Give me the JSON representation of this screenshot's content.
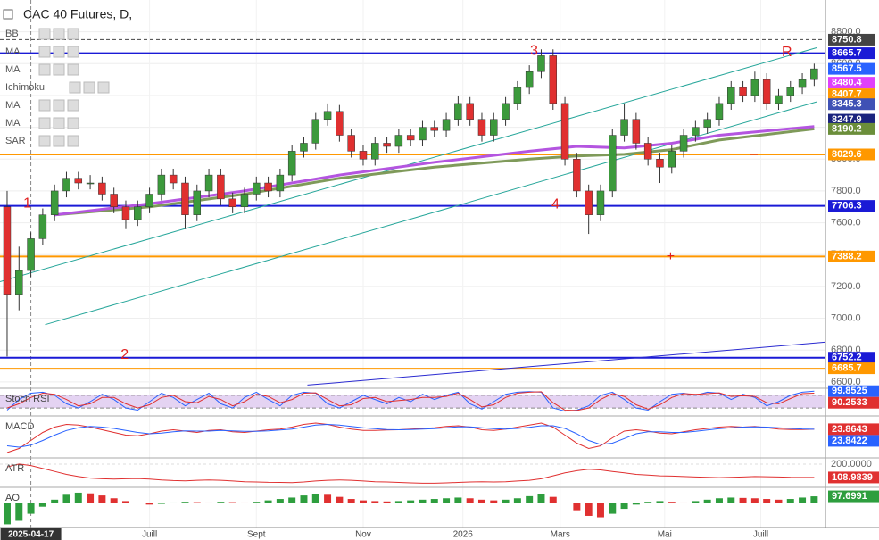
{
  "chart_data": [
    {
      "type": "candlestick",
      "title": "CAC 40 Futures, D,",
      "indicators": [
        "BB",
        "MA",
        "MA",
        "Ichimoku",
        "MA",
        "MA",
        "SAR"
      ],
      "up_color": "#3c9a3c",
      "down_color": "#e03030",
      "open": [
        7700,
        7150,
        7300,
        7500,
        7650,
        7800,
        7880,
        7850,
        7850,
        7780,
        7700,
        7620,
        7700,
        7780,
        7900,
        7850,
        7650,
        7800,
        7900,
        7750,
        7700,
        7780,
        7850,
        7800,
        7900,
        8050,
        8100,
        8250,
        8300,
        8150,
        8050,
        8000,
        8100,
        8080,
        8150,
        8120,
        8200,
        8180,
        8250,
        8350,
        8250,
        8150,
        8250,
        8350,
        8450,
        8550,
        8650,
        8350,
        8000,
        7800,
        7650,
        7800,
        8150,
        8250,
        8100,
        8000,
        7950,
        8050,
        8150,
        8200,
        8250,
        8350,
        8450,
        8400,
        8500,
        8350,
        8400,
        8450,
        8500
      ],
      "high": [
        7800,
        7450,
        7540,
        7690,
        7840,
        7920,
        7920,
        7900,
        7890,
        7820,
        7740,
        7740,
        7820,
        7940,
        7940,
        7890,
        7840,
        7940,
        7940,
        7790,
        7820,
        7890,
        7890,
        7940,
        8090,
        8140,
        8290,
        8350,
        8340,
        8190,
        8090,
        8140,
        8140,
        8190,
        8190,
        8240,
        8240,
        8290,
        8400,
        8390,
        8290,
        8290,
        8390,
        8490,
        8590,
        8690,
        8690,
        8390,
        8040,
        7840,
        7840,
        8190,
        8350,
        8290,
        8140,
        8040,
        8090,
        8190,
        8240,
        8290,
        8390,
        8490,
        8490,
        8550,
        8540,
        8440,
        8490,
        8540,
        8600
      ],
      "low": [
        6760,
        7050,
        7260,
        7460,
        7610,
        7760,
        7810,
        7810,
        7740,
        7660,
        7560,
        7580,
        7660,
        7740,
        7810,
        7560,
        7610,
        7760,
        7710,
        7660,
        7660,
        7740,
        7760,
        7760,
        7860,
        8010,
        8060,
        8210,
        8110,
        8010,
        7960,
        7960,
        8040,
        8040,
        8080,
        8080,
        8140,
        8140,
        8210,
        8210,
        8110,
        8110,
        8210,
        8310,
        8410,
        8510,
        8310,
        7960,
        7760,
        7530,
        7610,
        7760,
        8110,
        8060,
        7960,
        7850,
        7910,
        8010,
        8110,
        8160,
        8210,
        8310,
        8360,
        8360,
        8310,
        8310,
        8360,
        8410,
        8460
      ],
      "close": [
        7150,
        7300,
        7500,
        7650,
        7800,
        7880,
        7850,
        7850,
        7780,
        7700,
        7620,
        7700,
        7780,
        7900,
        7850,
        7650,
        7800,
        7900,
        7750,
        7700,
        7780,
        7850,
        7800,
        7900,
        8050,
        8100,
        8250,
        8300,
        8150,
        8050,
        8000,
        8100,
        8080,
        8150,
        8120,
        8200,
        8180,
        8250,
        8350,
        8250,
        8150,
        8250,
        8350,
        8450,
        8550,
        8650,
        8350,
        8000,
        7800,
        7650,
        7800,
        8150,
        8250,
        8100,
        8000,
        7950,
        8050,
        8150,
        8200,
        8250,
        8350,
        8450,
        8400,
        8500,
        8350,
        8400,
        8450,
        8500,
        8567.5
      ],
      "xlim": [
        -0.6,
        68.95
      ],
      "xticks": [
        {
          "value": 12,
          "label": "Juill"
        },
        {
          "value": 21,
          "label": "Sept"
        },
        {
          "value": 30,
          "label": "Nov"
        },
        {
          "value": 38.4,
          "label": "2026"
        },
        {
          "value": 46.6,
          "label": "Mars"
        },
        {
          "value": 55.4,
          "label": "Mai"
        },
        {
          "value": 63.5,
          "label": "Juill"
        }
      ],
      "x_marker": {
        "value": 2,
        "label": "2025-04-17"
      },
      "ylim": [
        6560,
        9000
      ],
      "yticks": [
        {
          "value": 6600,
          "label": "6600.0"
        },
        {
          "value": 6800,
          "label": "6800.0"
        },
        {
          "value": 7000,
          "label": "7000.0"
        },
        {
          "value": 7200,
          "label": "7200.0"
        },
        {
          "value": 7400,
          "label": "7400.0"
        },
        {
          "value": 7600,
          "label": "7600.0"
        },
        {
          "value": 7800,
          "label": "7800.0"
        },
        {
          "value": 8000,
          "label": "8000.0"
        },
        {
          "value": 8200,
          "label": "8200.0"
        },
        {
          "value": 8400,
          "label": "8400.0"
        },
        {
          "value": 8600,
          "label": "8600.0"
        },
        {
          "value": 8800,
          "label": "8800.0"
        }
      ],
      "grid": true,
      "levels": [
        {
          "value": 8750.8,
          "color": "#444444",
          "line": "dashed"
        },
        {
          "value": 8665.7,
          "color": "#1a1ad6",
          "line": "solid"
        },
        {
          "value": 8567.5,
          "color": "#2962ff"
        },
        {
          "value": 8480.4,
          "color": "#e040fb"
        },
        {
          "value": 8407.7,
          "color": "#ff9800"
        },
        {
          "value": 8345.3,
          "color": "#3f51b5"
        },
        {
          "value": 8247.9,
          "color": "#1a237e"
        },
        {
          "value": 8190.2,
          "color": "#6b8e3a"
        },
        {
          "value": 8029.6,
          "color": "#ff9800",
          "line": "solid"
        },
        {
          "value": 7706.3,
          "color": "#1a1ad6",
          "line": "solid"
        },
        {
          "value": 7388.2,
          "color": "#ff9800",
          "line": "solid"
        },
        {
          "value": 6752.2,
          "color": "#1a1ad6",
          "line": "solid"
        },
        {
          "value": 6685.7,
          "color": "#ff9800",
          "line": "thin"
        }
      ],
      "overlays": [
        {
          "color": "#7f9a5a",
          "x": [
            4,
            12,
            20,
            28,
            36,
            44,
            48,
            52,
            56,
            60,
            68
          ],
          "values": [
            7650,
            7700,
            7780,
            7880,
            7950,
            8000,
            8020,
            8030,
            8060,
            8120,
            8190
          ]
        },
        {
          "color": "#b455e0",
          "x": [
            4,
            12,
            20,
            28,
            36,
            44,
            48,
            52,
            56,
            60,
            68
          ],
          "values": [
            7650,
            7720,
            7800,
            7900,
            7980,
            8050,
            8080,
            8070,
            8100,
            8150,
            8205
          ]
        }
      ],
      "trendlines": [
        {
          "color": "#26a69a",
          "points": [
            [
              -0.6,
              7230
            ],
            [
              68.2,
              8700
            ]
          ]
        },
        {
          "color": "#26a69a",
          "points": [
            [
              3.2,
              6960
            ],
            [
              68.2,
              8360
            ]
          ]
        },
        {
          "color": "#2a2ad0",
          "points": [
            [
              25.3,
              6580
            ],
            [
              69,
              6850
            ]
          ]
        }
      ],
      "annotations": [
        {
          "text": "1",
          "x": 1.7,
          "y": 7720
        },
        {
          "text": "2",
          "x": 9.9,
          "y": 6770
        },
        {
          "text": "3",
          "x": 44.4,
          "y": 8680
        },
        {
          "text": "4",
          "x": 46.2,
          "y": 7715
        },
        {
          "text": "R",
          "x": 65.7,
          "y": 8670
        },
        {
          "text": "+",
          "x": 55.9,
          "y": 7385
        },
        {
          "text": "–",
          "x": 62.9,
          "y": 8030
        }
      ],
      "annotation_color": "#e02020"
    },
    {
      "type": "line",
      "title": "Stoch RSI",
      "ylim": [
        -5,
        105
      ],
      "band": [
        20,
        80
      ],
      "band_color": "#e4d3f2",
      "series": [
        {
          "color": "#2962ff",
          "values": [
            10,
            60,
            90,
            95,
            80,
            40,
            20,
            50,
            85,
            60,
            20,
            10,
            50,
            90,
            70,
            30,
            60,
            90,
            40,
            20,
            70,
            95,
            60,
            30,
            80,
            95,
            90,
            40,
            20,
            50,
            80,
            60,
            40,
            70,
            50,
            85,
            60,
            80,
            95,
            40,
            15,
            50,
            85,
            95,
            98,
            95,
            20,
            5,
            10,
            30,
            80,
            95,
            60,
            20,
            10,
            50,
            85,
            90,
            80,
            95,
            90,
            60,
            85,
            70,
            30,
            50,
            80,
            95,
            99.8525
          ]
        },
        {
          "color": "#e03030",
          "values": [
            20,
            40,
            70,
            90,
            85,
            60,
            30,
            40,
            70,
            70,
            40,
            20,
            35,
            70,
            80,
            50,
            45,
            75,
            60,
            30,
            50,
            85,
            75,
            45,
            60,
            90,
            92,
            60,
            30,
            35,
            65,
            70,
            50,
            55,
            60,
            70,
            70,
            75,
            90,
            60,
            25,
            35,
            70,
            90,
            95,
            97,
            45,
            10,
            8,
            20,
            60,
            88,
            75,
            35,
            15,
            35,
            70,
            88,
            85,
            88,
            92,
            75,
            78,
            75,
            45,
            40,
            65,
            88,
            90.2533
          ]
        }
      ]
    },
    {
      "type": "line",
      "title": "MACD",
      "ylim": [
        -170,
        110
      ],
      "series": [
        {
          "color": "#e03030",
          "values": [
            -150,
            -120,
            -60,
            0,
            40,
            60,
            55,
            40,
            20,
            0,
            -20,
            -25,
            -10,
            10,
            20,
            10,
            0,
            15,
            20,
            5,
            0,
            10,
            20,
            25,
            40,
            60,
            70,
            60,
            40,
            25,
            15,
            15,
            18,
            20,
            25,
            30,
            35,
            45,
            50,
            40,
            20,
            15,
            25,
            40,
            55,
            70,
            40,
            -20,
            -80,
            -120,
            -100,
            -40,
            10,
            20,
            10,
            -5,
            -10,
            5,
            20,
            30,
            40,
            45,
            40,
            45,
            35,
            25,
            22,
            22,
            23.8643
          ]
        },
        {
          "color": "#2962ff",
          "values": [
            -100,
            -110,
            -95,
            -60,
            -20,
            15,
            35,
            45,
            40,
            30,
            15,
            0,
            -10,
            -5,
            5,
            12,
            10,
            10,
            15,
            12,
            8,
            8,
            12,
            18,
            25,
            40,
            55,
            60,
            55,
            45,
            35,
            28,
            22,
            20,
            22,
            25,
            28,
            35,
            42,
            42,
            35,
            28,
            25,
            30,
            38,
            50,
            50,
            30,
            -10,
            -60,
            -90,
            -80,
            -45,
            -10,
            5,
            5,
            0,
            0,
            8,
            18,
            28,
            35,
            40,
            42,
            40,
            35,
            30,
            26,
            23.8422
          ]
        }
      ]
    },
    {
      "type": "line",
      "title": "ATR",
      "ylim": [
        60,
        230
      ],
      "yticks": [
        {
          "value": 200,
          "label": "200.0000"
        }
      ],
      "series": [
        {
          "color": "#e03030",
          "values": [
            180,
            200,
            190,
            170,
            150,
            130,
            115,
            105,
            100,
            98,
            100,
            102,
            98,
            92,
            88,
            86,
            90,
            92,
            90,
            85,
            80,
            78,
            76,
            75,
            74,
            78,
            85,
            90,
            92,
            90,
            85,
            80,
            78,
            75,
            72,
            70,
            70,
            72,
            75,
            78,
            80,
            78,
            80,
            85,
            90,
            100,
            120,
            140,
            155,
            165,
            160,
            150,
            140,
            130,
            125,
            120,
            118,
            115,
            112,
            110,
            108,
            110,
            112,
            115,
            114,
            112,
            110,
            109,
            108.9839
          ]
        }
      ]
    },
    {
      "type": "bar",
      "title": "AO",
      "ylim": [
        -320,
        200
      ],
      "up_color": "#2e9e3e",
      "down_color": "#e03030",
      "label_color": "#2e9e3e",
      "values": [
        -300,
        -250,
        -150,
        -50,
        50,
        120,
        150,
        140,
        110,
        70,
        30,
        0,
        -20,
        -10,
        10,
        20,
        15,
        10,
        20,
        15,
        10,
        20,
        40,
        60,
        80,
        110,
        130,
        120,
        90,
        60,
        40,
        30,
        25,
        30,
        40,
        50,
        60,
        70,
        80,
        70,
        50,
        40,
        50,
        70,
        100,
        130,
        90,
        0,
        -100,
        -180,
        -200,
        -150,
        -80,
        -20,
        20,
        30,
        20,
        10,
        30,
        50,
        70,
        80,
        75,
        70,
        60,
        50,
        60,
        80,
        97.6991
      ]
    }
  ]
}
